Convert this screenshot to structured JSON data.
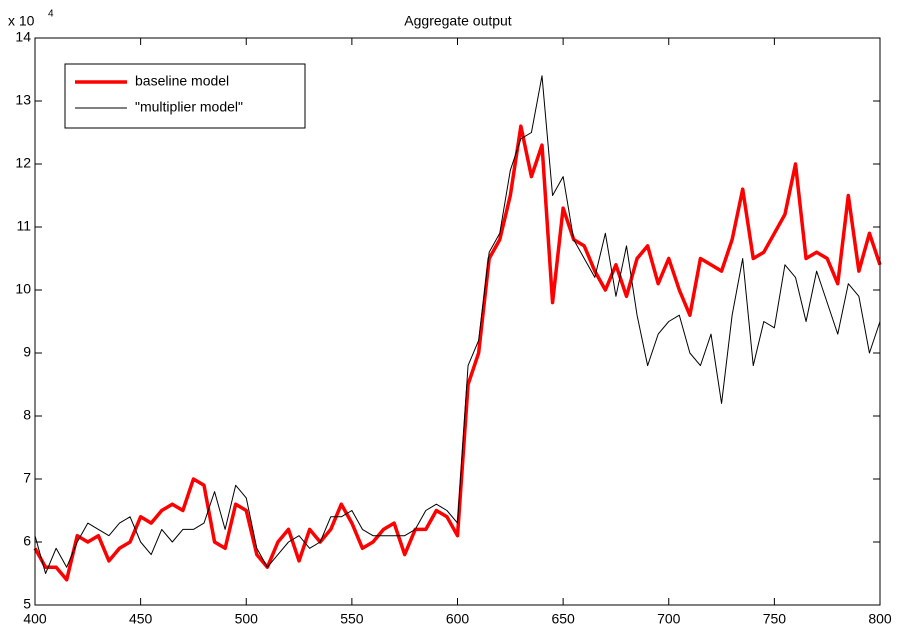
{
  "chart_data": {
    "type": "line",
    "title": "Aggregate output",
    "y_multiplier": {
      "base": "x 10",
      "exponent": "4"
    },
    "x": [
      400,
      405,
      410,
      415,
      420,
      425,
      430,
      435,
      440,
      445,
      450,
      455,
      460,
      465,
      470,
      475,
      480,
      485,
      490,
      495,
      500,
      505,
      510,
      515,
      520,
      525,
      530,
      535,
      540,
      545,
      550,
      555,
      560,
      565,
      570,
      575,
      580,
      585,
      590,
      595,
      600,
      605,
      610,
      615,
      620,
      625,
      630,
      635,
      640,
      645,
      650,
      655,
      660,
      665,
      670,
      675,
      680,
      685,
      690,
      695,
      700,
      705,
      710,
      715,
      720,
      725,
      730,
      735,
      740,
      745,
      750,
      755,
      760,
      765,
      770,
      775,
      780,
      785,
      790,
      795,
      800
    ],
    "series": [
      {
        "name": "baseline model",
        "color": "#ff0000",
        "width": 3.5,
        "values": [
          5.9,
          5.6,
          5.6,
          5.4,
          6.1,
          6.0,
          6.1,
          5.7,
          5.9,
          6.0,
          6.4,
          6.3,
          6.5,
          6.6,
          6.5,
          7.0,
          6.9,
          6.0,
          5.9,
          6.6,
          6.5,
          5.8,
          5.6,
          6.0,
          6.2,
          5.7,
          6.2,
          6.0,
          6.2,
          6.6,
          6.3,
          5.9,
          6.0,
          6.2,
          6.3,
          5.8,
          6.2,
          6.2,
          6.5,
          6.4,
          6.1,
          8.5,
          9.0,
          10.5,
          10.8,
          11.5,
          12.6,
          11.8,
          12.3,
          9.8,
          11.3,
          10.8,
          10.7,
          10.3,
          10.0,
          10.4,
          9.9,
          10.5,
          10.7,
          10.1,
          10.5,
          10.0,
          9.6,
          10.5,
          10.4,
          10.3,
          10.8,
          11.6,
          10.5,
          10.6,
          10.9,
          11.2,
          12.0,
          10.5,
          10.6,
          10.5,
          10.1,
          11.5,
          10.3,
          10.9,
          10.4
        ]
      },
      {
        "name": "\"multiplier model\"",
        "color": "#000000",
        "width": 1,
        "values": [
          6.1,
          5.5,
          5.9,
          5.6,
          6.0,
          6.3,
          6.2,
          6.1,
          6.3,
          6.4,
          6.0,
          5.8,
          6.2,
          6.0,
          6.2,
          6.2,
          6.3,
          6.8,
          6.2,
          6.9,
          6.7,
          5.9,
          5.6,
          5.8,
          6.0,
          6.1,
          5.9,
          6.0,
          6.4,
          6.4,
          6.5,
          6.2,
          6.1,
          6.1,
          6.1,
          6.1,
          6.2,
          6.5,
          6.6,
          6.5,
          6.3,
          8.8,
          9.2,
          10.6,
          10.9,
          11.9,
          12.4,
          12.5,
          13.4,
          11.5,
          11.8,
          10.8,
          10.5,
          10.2,
          10.9,
          9.9,
          10.7,
          9.6,
          8.8,
          9.3,
          9.5,
          9.6,
          9.0,
          8.8,
          9.3,
          8.2,
          9.6,
          10.5,
          8.8,
          9.5,
          9.4,
          10.4,
          10.2,
          9.5,
          10.3,
          9.8,
          9.3,
          10.1,
          9.9,
          9.0,
          9.5
        ]
      }
    ],
    "xlim": [
      400,
      800
    ],
    "ylim": [
      5,
      14
    ],
    "xticks": [
      400,
      450,
      500,
      550,
      600,
      650,
      700,
      750,
      800
    ],
    "yticks": [
      5,
      6,
      7,
      8,
      9,
      10,
      11,
      12,
      13,
      14
    ],
    "legend": "upper left"
  }
}
